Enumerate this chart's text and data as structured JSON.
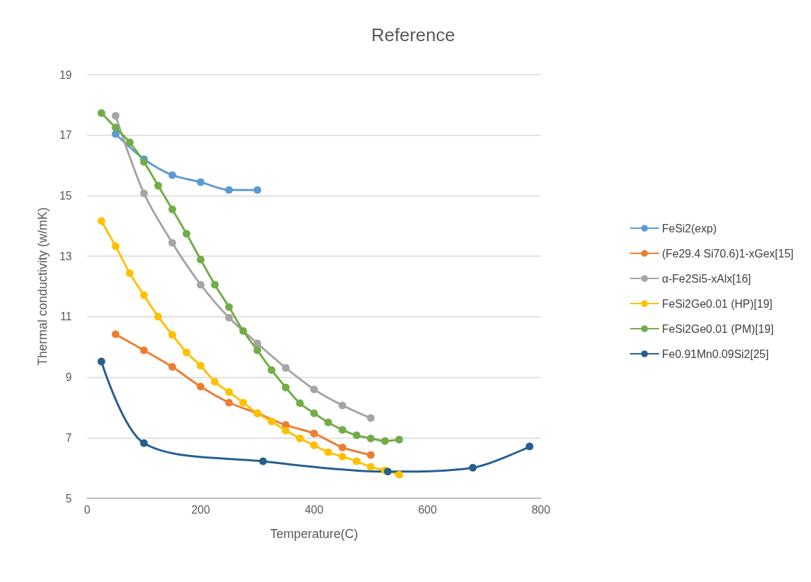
{
  "chart_data": {
    "type": "line",
    "title": "Reference",
    "xlabel": "Temperature(C)",
    "ylabel": "Thermal conductivity (w/mK)",
    "xlim": [
      0,
      800
    ],
    "xticks": [
      0,
      200,
      400,
      600,
      800
    ],
    "ylim": [
      5,
      19
    ],
    "yticks": [
      5,
      7,
      9,
      11,
      13,
      15,
      17,
      19
    ],
    "grid": "y",
    "legend": "right",
    "marker": "circle",
    "line_style": "solid",
    "series": [
      {
        "name": "FeSi2(exp)",
        "color": "#5b9bd5",
        "x": [
          50,
          100,
          150,
          200,
          250,
          300
        ],
        "values": [
          17.04,
          16.21,
          15.68,
          15.45,
          15.19,
          15.19
        ]
      },
      {
        "name": "(Fe29.4 Si70.6)1-xGex[15]",
        "color": "#ed7d31",
        "x": [
          50,
          100,
          150,
          200,
          250,
          300,
          350,
          400,
          450,
          500
        ],
        "values": [
          10.42,
          9.89,
          9.34,
          8.69,
          8.16,
          7.81,
          7.42,
          7.14,
          6.68,
          6.43
        ]
      },
      {
        "name": "α-Fe2Si5-xAlx[16]",
        "color": "#a5a5a5",
        "x": [
          50,
          100,
          150,
          200,
          250,
          300,
          350,
          400,
          450,
          500
        ],
        "values": [
          17.64,
          15.08,
          13.44,
          12.06,
          10.97,
          10.12,
          9.31,
          8.6,
          8.07,
          7.65
        ]
      },
      {
        "name": "FeSi2Ge0.01 (HP)[19]",
        "color": "#ffc000",
        "x": [
          25,
          50,
          75,
          100,
          125,
          150,
          175,
          200,
          225,
          250,
          275,
          300,
          325,
          350,
          375,
          400,
          425,
          450,
          475,
          500,
          525,
          550
        ],
        "values": [
          14.16,
          13.33,
          12.44,
          11.71,
          11.0,
          10.4,
          9.82,
          9.38,
          8.85,
          8.51,
          8.16,
          7.81,
          7.54,
          7.24,
          6.98,
          6.75,
          6.52,
          6.38,
          6.22,
          6.04,
          5.92,
          5.78
        ]
      },
      {
        "name": "FeSi2Ge0.01 (PM)[19]",
        "color": "#70ad47",
        "x": [
          25,
          50,
          75,
          100,
          125,
          150,
          175,
          200,
          225,
          250,
          275,
          300,
          325,
          350,
          375,
          400,
          425,
          450,
          475,
          500,
          525,
          550
        ],
        "values": [
          17.73,
          17.25,
          16.76,
          16.12,
          15.33,
          14.55,
          13.74,
          12.89,
          12.06,
          11.32,
          10.53,
          9.89,
          9.24,
          8.66,
          8.14,
          7.81,
          7.51,
          7.26,
          7.08,
          6.98,
          6.89,
          6.94
        ]
      },
      {
        "name": "Fe0.91Mn0.09Si2[25]",
        "color": "#255e91",
        "x": [
          25,
          100,
          310,
          530,
          680,
          780
        ],
        "values": [
          9.52,
          6.82,
          6.22,
          5.88,
          6.01,
          6.71
        ]
      }
    ]
  }
}
